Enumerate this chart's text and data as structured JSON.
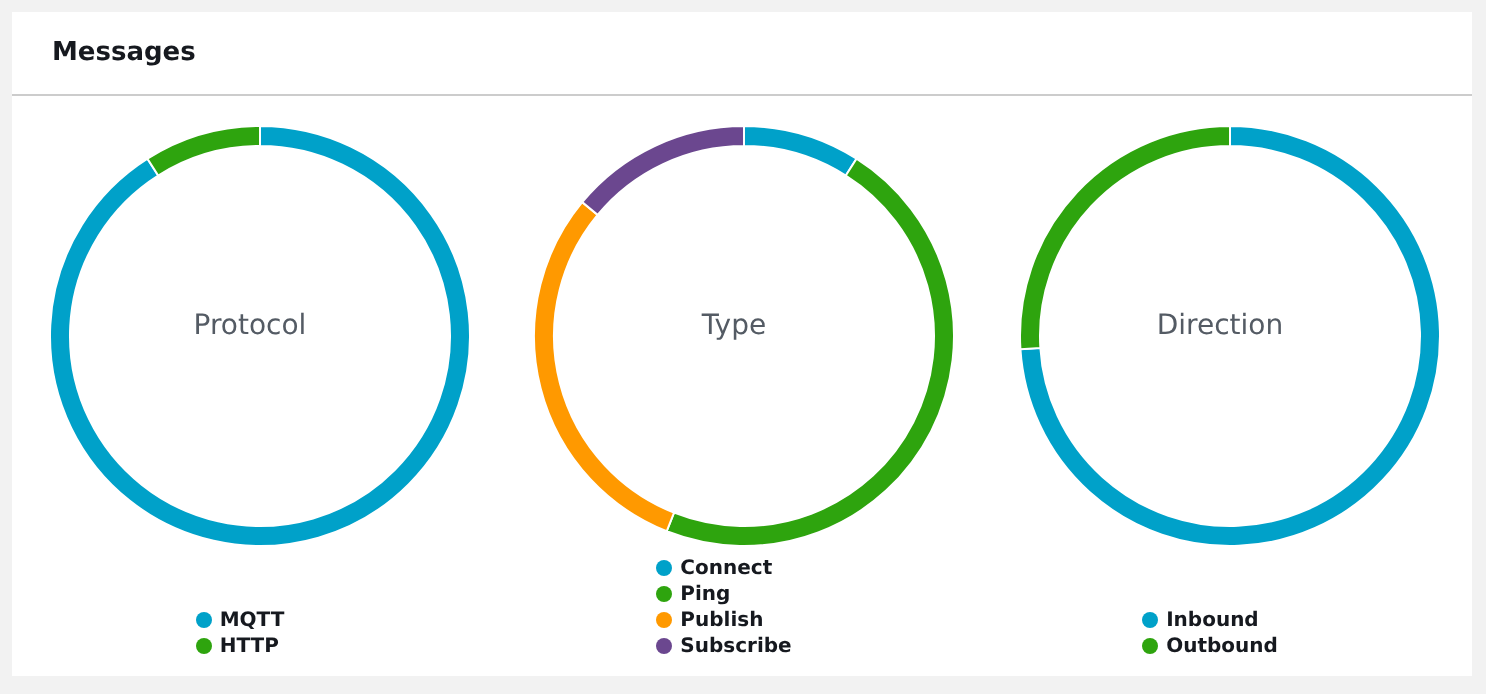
{
  "chart_data": [
    {
      "type": "other",
      "title": "Messages"
    },
    {
      "type": "donut",
      "title": "Protocol",
      "categories": [
        "MQTT",
        "HTTP"
      ],
      "values": [
        91,
        9
      ],
      "colors": [
        "#00a1c9",
        "#2ea40e"
      ],
      "legend": "bottom"
    },
    {
      "type": "donut",
      "title": "Type",
      "categories": [
        "Connect",
        "Ping",
        "Publish",
        "Subscribe"
      ],
      "values": [
        9,
        47,
        30,
        14
      ],
      "colors": [
        "#00a1c9",
        "#2ea40e",
        "#ff9900",
        "#6b478f"
      ],
      "legend": "bottom"
    },
    {
      "type": "donut",
      "title": "Direction",
      "categories": [
        "Inbound",
        "Outbound"
      ],
      "values": [
        74,
        26
      ],
      "colors": [
        "#00a1c9",
        "#2ea40e"
      ],
      "legend": "bottom"
    }
  ]
}
